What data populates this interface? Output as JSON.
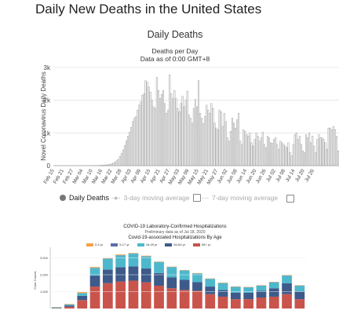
{
  "page": {
    "title": "Daily New Deaths in the United States"
  },
  "chart_data": [
    {
      "type": "bar",
      "title": "Daily Deaths",
      "subtitle_lines": [
        "Deaths per Day",
        "Data as of 0:00 GMT+8"
      ],
      "ylabel": "Novel Coronavirus Daily Deaths",
      "yticks": [
        "0",
        "1k",
        "2k",
        "3k"
      ],
      "ylim": [
        0,
        3000
      ],
      "start_date": "2020-02-15",
      "xtick_labels": [
        "Feb 15",
        "Feb 21",
        "Feb 27",
        "Mar 04",
        "Mar 10",
        "Mar 16",
        "Mar 22",
        "Mar 28",
        "Apr 03",
        "Apr 09",
        "Apr 15",
        "Apr 21",
        "Apr 27",
        "May 03",
        "May 09",
        "May 15",
        "May 21",
        "May 27",
        "Jun 02",
        "Jun 08",
        "Jun 14",
        "Jun 20",
        "Jun 26",
        "Jul 02",
        "Jul 08",
        "Jul 14",
        "Jul 20",
        "Jul 26"
      ],
      "values": [
        0,
        0,
        0,
        0,
        0,
        0,
        0,
        0,
        0,
        0,
        0,
        0,
        0,
        0,
        0,
        1,
        0,
        0,
        0,
        0,
        1,
        0,
        0,
        1,
        2,
        3,
        4,
        5,
        6,
        9,
        12,
        15,
        20,
        25,
        30,
        40,
        58,
        80,
        110,
        150,
        200,
        280,
        380,
        480,
        620,
        760,
        900,
        1020,
        1170,
        1350,
        1450,
        1500,
        1700,
        1850,
        1950,
        2150,
        2200,
        2600,
        2550,
        2400,
        2250,
        2000,
        1800,
        1750,
        2700,
        2300,
        2050,
        2180,
        2300,
        1900,
        1600,
        1700,
        2780,
        2200,
        2050,
        2300,
        2050,
        1750,
        1650,
        1900,
        2120,
        1800,
        2000,
        2280,
        1550,
        1450,
        1300,
        1750,
        2020,
        1800,
        2600,
        1600,
        1450,
        1280,
        1500,
        1850,
        1700,
        1600,
        1900,
        1750,
        1300,
        1150,
        1100,
        1700,
        1650,
        1200,
        1600,
        1350,
        850,
        750,
        1050,
        1450,
        1300,
        1150,
        1400,
        1600,
        750,
        650,
        1100,
        1050,
        950,
        900,
        1000,
        700,
        600,
        800,
        1000,
        900,
        750,
        850,
        1020,
        650,
        550,
        900,
        850,
        700,
        680,
        800,
        850,
        650,
        500,
        750,
        700,
        650,
        600,
        550,
        700,
        400,
        300,
        650,
        950,
        1000,
        800,
        900,
        650,
        450,
        400,
        950,
        850,
        1000,
        700,
        900,
        600,
        400,
        800,
        950,
        850,
        850,
        800,
        700,
        500,
        1150,
        1150,
        1100,
        1200,
        1100,
        900,
        450
      ]
    },
    {
      "type": "bar",
      "stacked": true,
      "title": "COVID-19 Laboratory-Confirmed Hospitalizations",
      "subtitle": "Preliminary data as of Jul 18, 2020",
      "chart_title": "Covid-19-associated Hospitalizations By Age",
      "ylabel": "Case Counts",
      "yticks": [
        "3,000",
        "2,000",
        "1,000"
      ],
      "ylim": [
        0,
        3500
      ],
      "series": [
        {
          "name": "0-4 yr",
          "color": "#f0a24a",
          "values": [
            10,
            30,
            60,
            50,
            30,
            40,
            30,
            30,
            20,
            20,
            20,
            20,
            20,
            20,
            20,
            20,
            20,
            20,
            20,
            20
          ]
        },
        {
          "name": "5-17 yr",
          "color": "#5a6fa8",
          "values": [
            0,
            0,
            10,
            10,
            10,
            10,
            10,
            10,
            10,
            10,
            10,
            10,
            10,
            10,
            10,
            10,
            10,
            10,
            10,
            10
          ]
        },
        {
          "name": "18-49 yr",
          "color": "#4db8cc",
          "values": [
            30,
            60,
            150,
            450,
            650,
            700,
            750,
            720,
            650,
            600,
            550,
            500,
            450,
            400,
            350,
            320,
            300,
            350,
            450,
            350
          ]
        },
        {
          "name": "50-64 yr",
          "color": "#3d5a8a",
          "values": [
            20,
            80,
            250,
            650,
            800,
            850,
            850,
            820,
            750,
            650,
            600,
            520,
            450,
            400,
            380,
            380,
            400,
            500,
            650,
            450
          ]
        },
        {
          "name": "65+ yr",
          "color": "#c9544b",
          "values": [
            20,
            100,
            500,
            1300,
            1500,
            1600,
            1650,
            1550,
            1350,
            1200,
            1100,
            1050,
            850,
            700,
            550,
            550,
            650,
            700,
            850,
            550
          ]
        }
      ]
    }
  ],
  "legend": {
    "daily_deaths": "Daily Deaths",
    "avg3": "3-day moving average",
    "avg7": "7-day moving average"
  }
}
